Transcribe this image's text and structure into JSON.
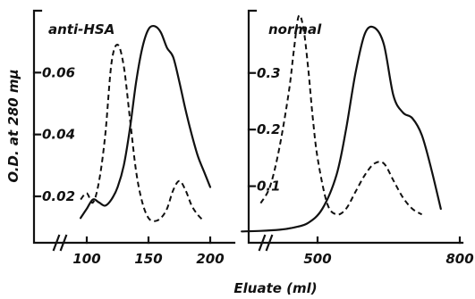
{
  "chart_data": {
    "type": "line",
    "ylabel": "O.D. at 280 mμ",
    "xlabel": "Eluate (ml)",
    "panels": [
      {
        "title": "anti-HSA",
        "x_ticks": [
          100,
          150,
          200
        ],
        "y_ticks": [
          0.02,
          0.04,
          0.06
        ],
        "y_tick_labels": [
          "0.02",
          "0.04",
          "0.06"
        ],
        "xlim": [
          70,
          215
        ],
        "ylim": [
          0.005,
          0.08
        ],
        "series": [
          {
            "style": "solid",
            "x": [
              95,
              100,
              105,
              110,
              115,
              120,
              125,
              130,
              135,
              140,
              145,
              150,
              155,
              160,
              165,
              170,
              175,
              180,
              185,
              190,
              195,
              200
            ],
            "y": [
              0.013,
              0.016,
              0.019,
              0.018,
              0.017,
              0.019,
              0.023,
              0.03,
              0.042,
              0.057,
              0.068,
              0.074,
              0.075,
              0.073,
              0.068,
              0.065,
              0.057,
              0.048,
              0.04,
              0.033,
              0.028,
              0.023
            ]
          },
          {
            "style": "dashed",
            "x": [
              95,
              100,
              105,
              110,
              115,
              120,
              125,
              130,
              135,
              140,
              145,
              150,
              155,
              160,
              165,
              170,
              175,
              180,
              185,
              190,
              195
            ],
            "y": [
              0.019,
              0.021,
              0.018,
              0.025,
              0.04,
              0.063,
              0.069,
              0.062,
              0.045,
              0.028,
              0.018,
              0.013,
              0.012,
              0.013,
              0.016,
              0.022,
              0.025,
              0.022,
              0.017,
              0.014,
              0.012
            ]
          }
        ]
      },
      {
        "title": "normal",
        "x_ticks": [
          500,
          800
        ],
        "y_ticks": [
          0.1,
          0.2,
          0.3
        ],
        "y_tick_labels": [
          "0.1",
          "0.2",
          "0.3"
        ],
        "xlim": [
          290,
          820
        ],
        "ylim": [
          0.0,
          0.41
        ],
        "series": [
          {
            "style": "solid",
            "x": [
              340,
              380,
              420,
              450,
              480,
              510,
              540,
              560,
              580,
              600,
              620,
              640,
              660,
              680,
              700,
              720,
              740,
              760
            ],
            "y": [
              0.02,
              0.021,
              0.023,
              0.027,
              0.035,
              0.06,
              0.12,
              0.2,
              0.3,
              0.37,
              0.38,
              0.35,
              0.26,
              0.23,
              0.22,
              0.19,
              0.13,
              0.06
            ]
          },
          {
            "style": "dashed",
            "x": [
              380,
              400,
              420,
              440,
              450,
              460,
              470,
              480,
              490,
              500,
              520,
              540,
              560,
              580,
              600,
              620,
              640,
              660,
              680,
              700,
              720
            ],
            "y": [
              0.07,
              0.1,
              0.17,
              0.27,
              0.34,
              0.4,
              0.38,
              0.31,
              0.22,
              0.15,
              0.07,
              0.05,
              0.06,
              0.09,
              0.12,
              0.14,
              0.14,
              0.11,
              0.08,
              0.06,
              0.05
            ]
          }
        ]
      }
    ]
  }
}
